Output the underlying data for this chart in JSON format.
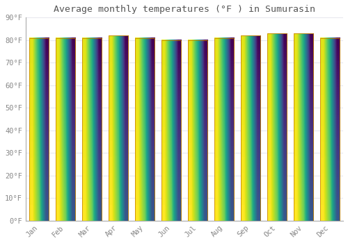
{
  "title": "Average monthly temperatures (°F ) in Sumurasin",
  "months": [
    "Jan",
    "Feb",
    "Mar",
    "Apr",
    "May",
    "Jun",
    "Jul",
    "Aug",
    "Sep",
    "Oct",
    "Nov",
    "Dec"
  ],
  "values": [
    81,
    81,
    81,
    82,
    81,
    80,
    80,
    81,
    82,
    83,
    83,
    81
  ],
  "ylim": [
    0,
    90
  ],
  "yticks": [
    0,
    10,
    20,
    30,
    40,
    50,
    60,
    70,
    80,
    90
  ],
  "ytick_labels": [
    "0°F",
    "10°F",
    "20°F",
    "30°F",
    "40°F",
    "50°F",
    "60°F",
    "70°F",
    "80°F",
    "90°F"
  ],
  "bar_color_top": "#F5A623",
  "bar_color_bottom": "#FFD060",
  "bar_edge_color": "#CC8800",
  "background_color": "#FFFFFF",
  "plot_bg_color": "#FFFFFF",
  "grid_color": "#E8E8EE",
  "title_color": "#555555",
  "tick_color": "#888888",
  "title_fontsize": 9.5,
  "tick_fontsize": 7.5,
  "bar_width": 0.75
}
